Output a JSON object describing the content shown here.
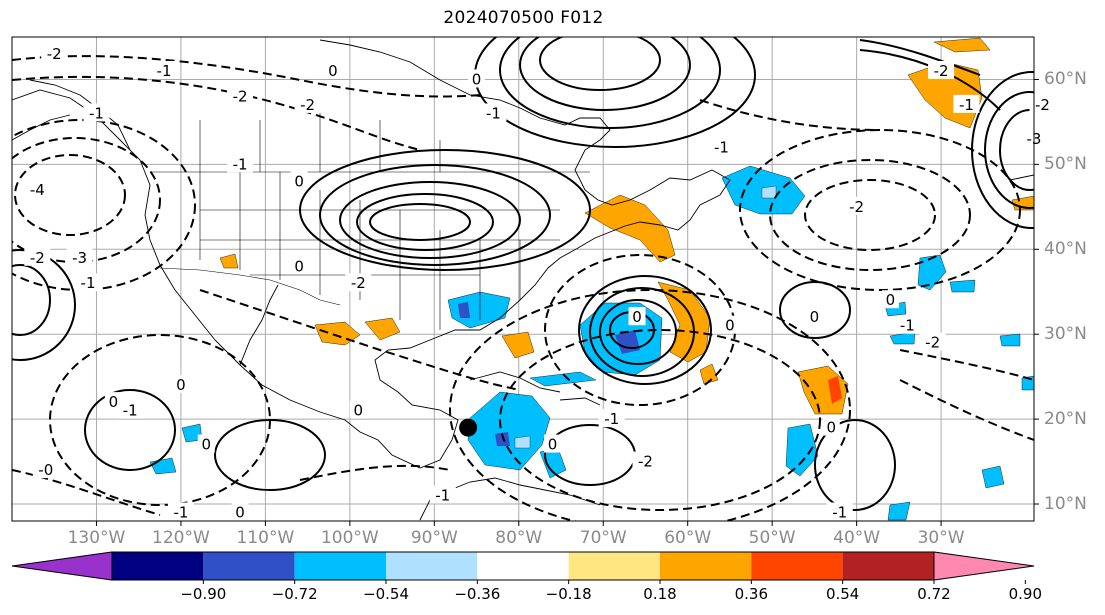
{
  "title": "2024070500 F012",
  "map": {
    "lon_labels": [
      "130°W",
      "120°W",
      "110°W",
      "100°W",
      "90°W",
      "80°W",
      "70°W",
      "60°W",
      "50°W",
      "40°W",
      "30°W"
    ],
    "lat_labels": [
      "60°N",
      "50°N",
      "40°N",
      "30°N",
      "20°N",
      "10°N"
    ],
    "lon_values": [
      -130,
      -120,
      -110,
      -100,
      -90,
      -80,
      -70,
      -60,
      -50,
      -40,
      -30
    ],
    "lat_values": [
      60,
      50,
      40,
      30,
      20,
      10
    ],
    "contour_labels": [
      {
        "text": "-2",
        "lon": -135,
        "lat": 63
      },
      {
        "text": "-1",
        "lon": -122,
        "lat": 61
      },
      {
        "text": "0",
        "lon": -102,
        "lat": 61
      },
      {
        "text": "-2",
        "lon": -113,
        "lat": 58
      },
      {
        "text": "-2",
        "lon": -105,
        "lat": 57
      },
      {
        "text": "-1",
        "lon": -130,
        "lat": 56
      },
      {
        "text": "-1",
        "lon": -113,
        "lat": 50
      },
      {
        "text": "-4",
        "lon": -137,
        "lat": 47
      },
      {
        "text": "-3",
        "lon": -132,
        "lat": 39
      },
      {
        "text": "-2",
        "lon": -137,
        "lat": 39
      },
      {
        "text": "-1",
        "lon": -131,
        "lat": 36
      },
      {
        "text": "0",
        "lon": -106,
        "lat": 48
      },
      {
        "text": "0",
        "lon": -106,
        "lat": 38
      },
      {
        "text": "0",
        "lon": -85,
        "lat": 60
      },
      {
        "text": "-1",
        "lon": -83,
        "lat": 56
      },
      {
        "text": "-2",
        "lon": -99,
        "lat": 36
      },
      {
        "text": "0",
        "lon": -128,
        "lat": 22
      },
      {
        "text": "0",
        "lon": -120,
        "lat": 24
      },
      {
        "text": "-1",
        "lon": -126,
        "lat": 21
      },
      {
        "text": "0",
        "lon": -117,
        "lat": 17
      },
      {
        "text": "-0",
        "lon": -136,
        "lat": 14
      },
      {
        "text": "-1",
        "lon": -120,
        "lat": 9
      },
      {
        "text": "0",
        "lon": -113,
        "lat": 9
      },
      {
        "text": "0",
        "lon": -99,
        "lat": 21
      },
      {
        "text": "-1",
        "lon": -89,
        "lat": 11
      },
      {
        "text": "0",
        "lon": -76,
        "lat": 17
      },
      {
        "text": "0",
        "lon": -66,
        "lat": 32
      },
      {
        "text": "0",
        "lon": -55,
        "lat": 31
      },
      {
        "text": "-1",
        "lon": -69,
        "lat": 20
      },
      {
        "text": "-2",
        "lon": -65,
        "lat": 15
      },
      {
        "text": "-1",
        "lon": -56,
        "lat": 52
      },
      {
        "text": "-2",
        "lon": -30,
        "lat": 61
      },
      {
        "text": "-2",
        "lon": -40,
        "lat": 45
      },
      {
        "text": "0",
        "lon": -36,
        "lat": 34
      },
      {
        "text": "0",
        "lon": -45,
        "lat": 32
      },
      {
        "text": "-1",
        "lon": -34,
        "lat": 31
      },
      {
        "text": "-2",
        "lon": -31,
        "lat": 29
      },
      {
        "text": "0",
        "lon": -43,
        "lat": 19
      },
      {
        "text": "-1",
        "lon": -42,
        "lat": 9
      },
      {
        "text": "-1",
        "lon": -27,
        "lat": 57
      },
      {
        "text": "-2",
        "lon": -18,
        "lat": 57
      },
      {
        "text": "-3",
        "lon": -19,
        "lat": 53
      }
    ],
    "marker": {
      "lon": -86,
      "lat": 19
    }
  },
  "colorbar": {
    "labels": [
      "−0.90",
      "−0.72",
      "−0.54",
      "−0.36",
      "−0.18",
      "0.18",
      "0.36",
      "0.54",
      "0.72",
      "0.90"
    ],
    "colors": [
      "#9932cc",
      "#000080",
      "#3050c8",
      "#00bfff",
      "#b0e0ff",
      "#ffffff",
      "#ffe680",
      "#ffa500",
      "#ff4500",
      "#b22222",
      "#ff88b0"
    ]
  }
}
